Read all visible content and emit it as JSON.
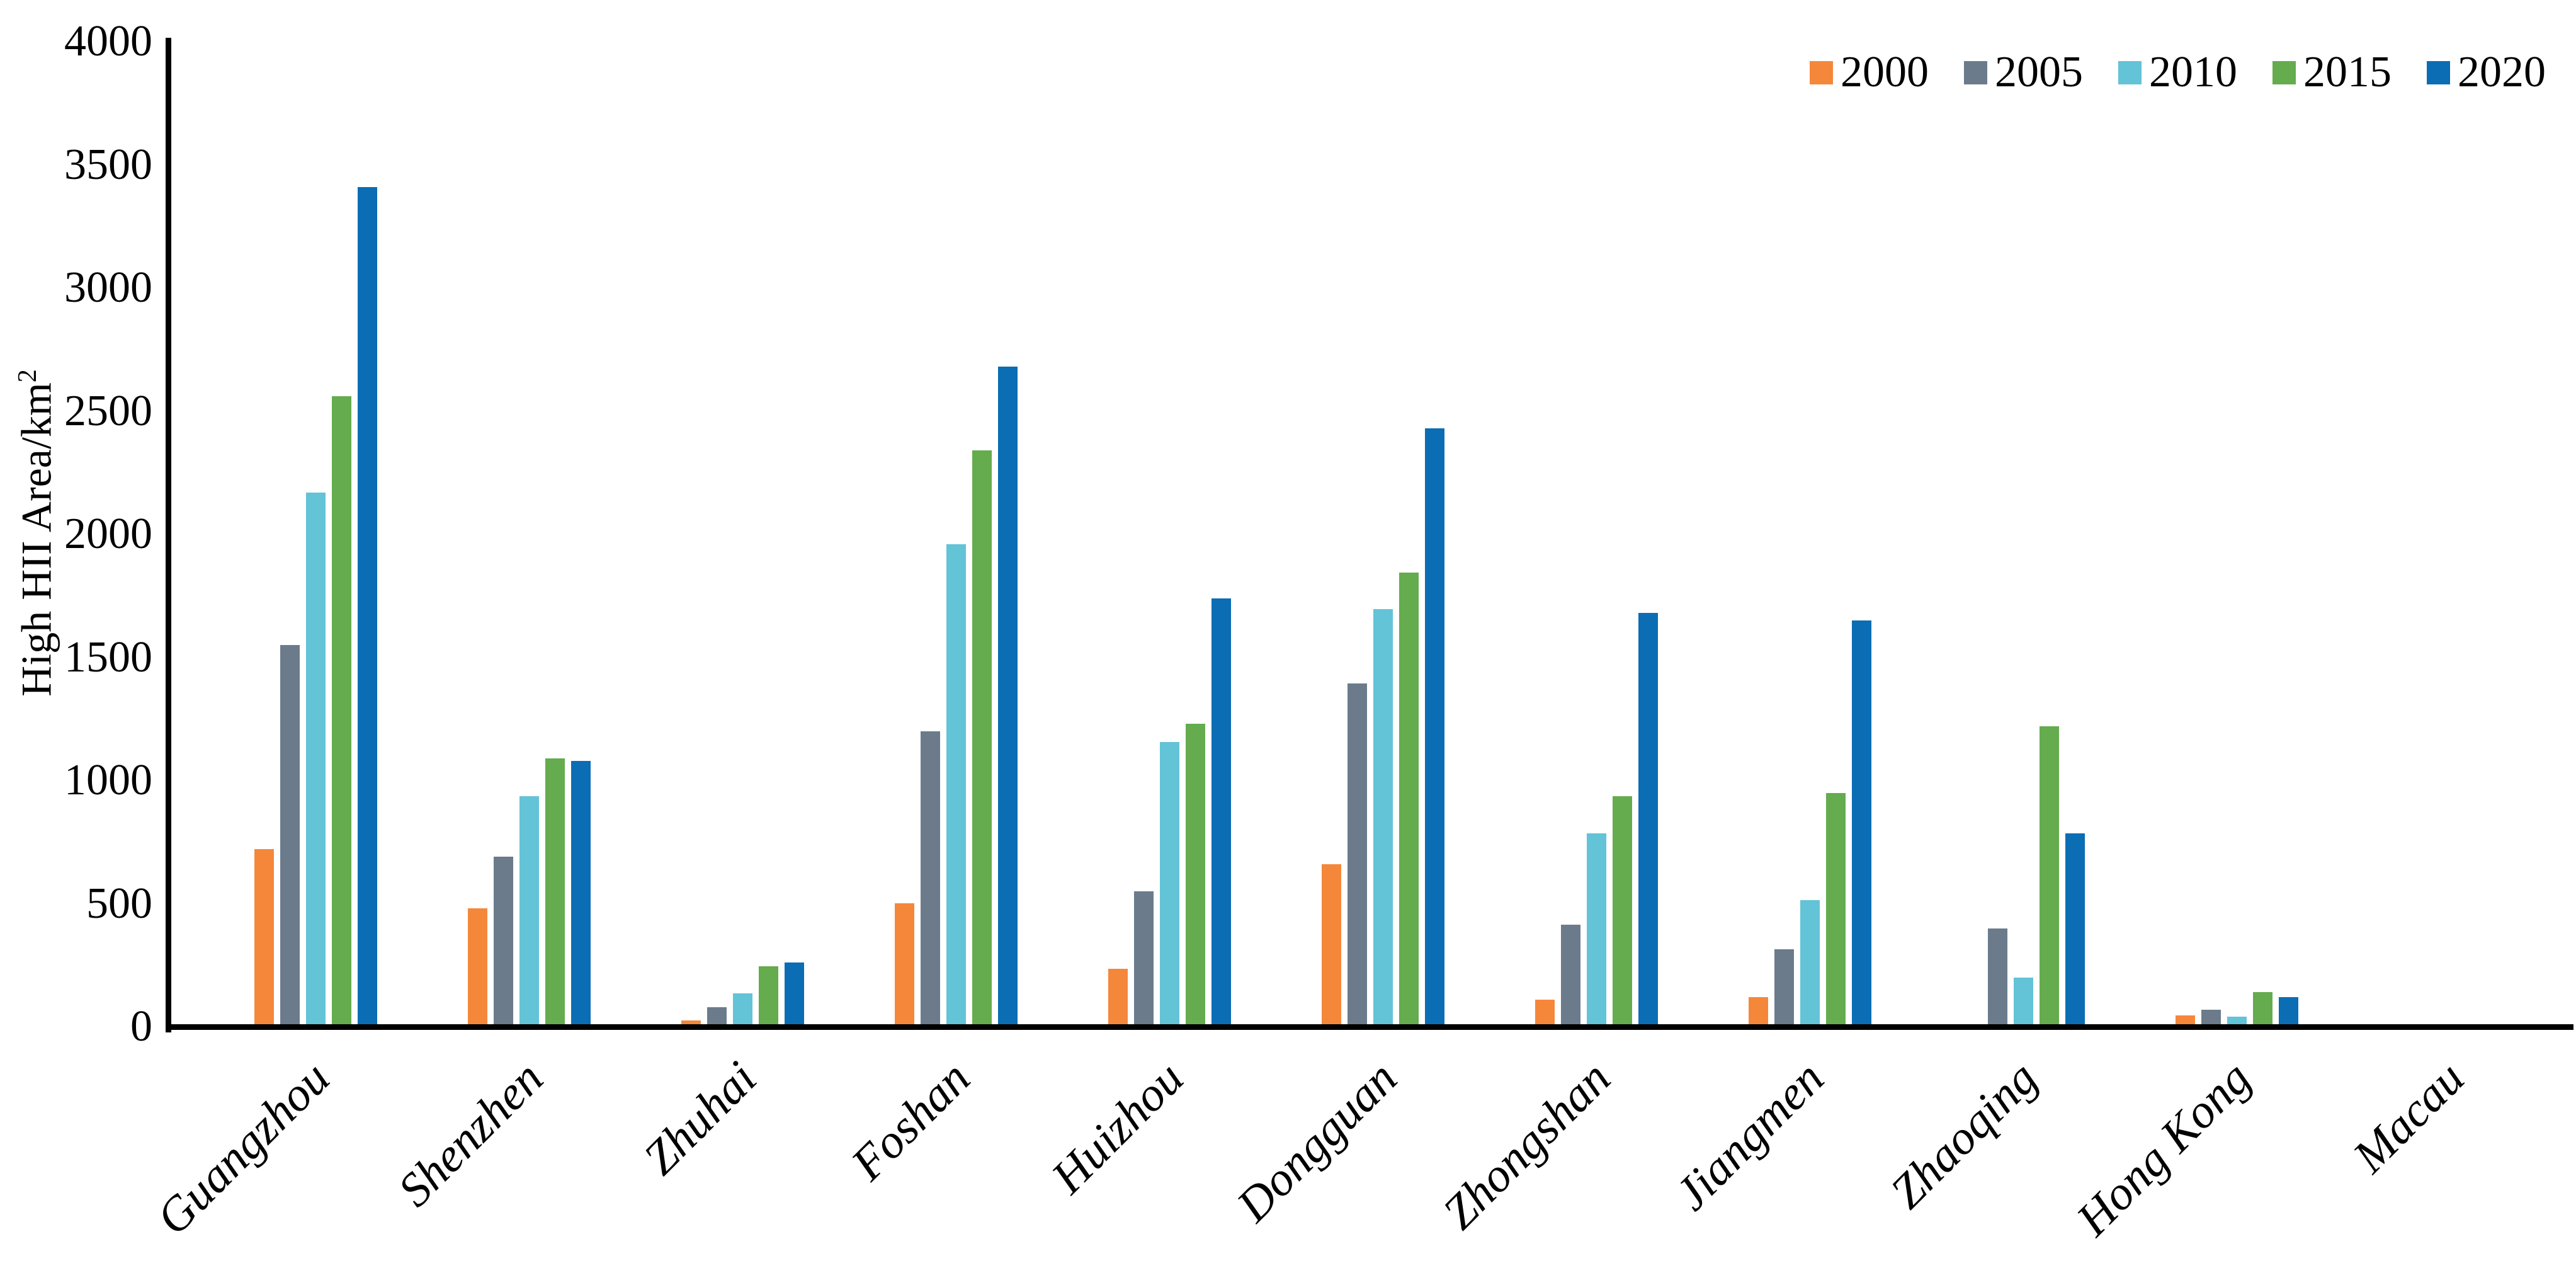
{
  "chart_data": {
    "type": "bar",
    "title": "",
    "xlabel": "",
    "ylabel": "High HII Area/km²",
    "ylabel_base": "High HII Area/km",
    "ylabel_sup": "2",
    "ylim": [
      0,
      4000
    ],
    "ytick_step": 500,
    "yticks": [
      0,
      500,
      1000,
      1500,
      2000,
      2500,
      3000,
      3500,
      4000
    ],
    "grid": false,
    "legend_position": "top-right",
    "axis_color": "#000000",
    "categories": [
      "Guangzhou",
      "Shenzhen",
      "Zhuhai",
      "Foshan",
      "Huizhou",
      "Dongguan",
      "Zhongshan",
      "Jiangmen",
      "Zhaoqing",
      "Hong Kong",
      "Macau"
    ],
    "series": [
      {
        "name": "2000",
        "color": "#F5873B",
        "values": [
          720,
          480,
          25,
          500,
          235,
          660,
          110,
          120,
          5,
          45,
          0
        ]
      },
      {
        "name": "2005",
        "color": "#6B7B8B",
        "values": [
          1550,
          690,
          80,
          1200,
          550,
          1395,
          415,
          315,
          400,
          70,
          0
        ]
      },
      {
        "name": "2010",
        "color": "#63C3D7",
        "values": [
          2170,
          935,
          135,
          1960,
          1155,
          1695,
          785,
          515,
          200,
          40,
          0
        ]
      },
      {
        "name": "2015",
        "color": "#64AC4D",
        "values": [
          2560,
          1090,
          245,
          2340,
          1230,
          1845,
          935,
          950,
          1220,
          140,
          0
        ]
      },
      {
        "name": "2020",
        "color": "#0B6DB4",
        "values": [
          3410,
          1080,
          260,
          2680,
          1740,
          2430,
          1680,
          1650,
          785,
          120,
          0
        ]
      }
    ]
  }
}
